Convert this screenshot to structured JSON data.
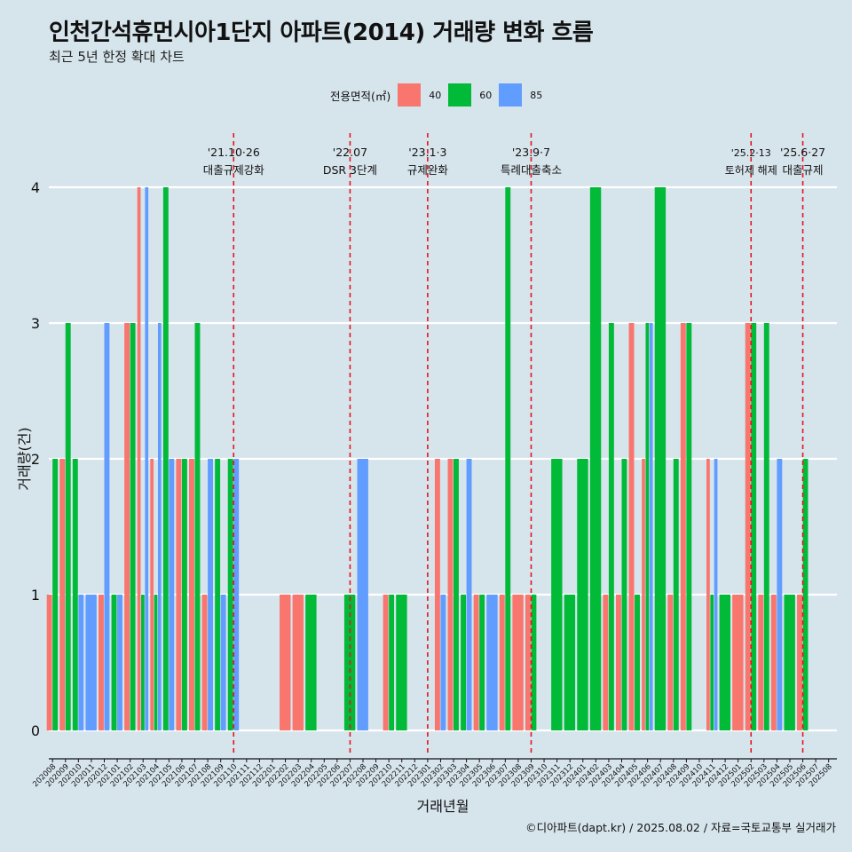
{
  "header": {
    "title": "인천간석휴먼시아1단지 아파트(2014) 거래량 변화 흐름",
    "subtitle": "최근 5년 한정 확대 차트"
  },
  "legend": {
    "title": "전용면적(㎡)",
    "items": [
      {
        "label": "40",
        "color": "#f8766d"
      },
      {
        "label": "60",
        "color": "#00ba38"
      },
      {
        "label": "85",
        "color": "#619cff"
      }
    ]
  },
  "caption": "©디아파트(dapt.kr) / 2025.08.02 / 자료=국토교통부 실거래가",
  "chart_data": {
    "type": "bar",
    "xlabel": "거래년월",
    "ylabel": "거래량(건)",
    "ylim": [
      0,
      4
    ],
    "yticks": [
      0,
      1,
      2,
      3,
      4
    ],
    "grid": true,
    "legend_position": "top",
    "series_colors": {
      "40": "#f8766d",
      "60": "#00ba38",
      "85": "#619cff"
    },
    "categories": [
      "202008",
      "202009",
      "202010",
      "202011",
      "202012",
      "202101",
      "202102",
      "202103",
      "202104",
      "202105",
      "202106",
      "202107",
      "202108",
      "202109",
      "202110",
      "202111",
      "202112",
      "202201",
      "202202",
      "202203",
      "202204",
      "202205",
      "202206",
      "202207",
      "202208",
      "202209",
      "202210",
      "202211",
      "202212",
      "202301",
      "202302",
      "202303",
      "202304",
      "202305",
      "202306",
      "202307",
      "202308",
      "202309",
      "202310",
      "202311",
      "202312",
      "202401",
      "202402",
      "202403",
      "202404",
      "202405",
      "202406",
      "202407",
      "202408",
      "202409",
      "202410",
      "202411",
      "202412",
      "202501",
      "202502",
      "202503",
      "202504",
      "202505",
      "202506",
      "202507",
      "202508"
    ],
    "bars": [
      {
        "month": "202008",
        "area": "40",
        "value": 1
      },
      {
        "month": "202008",
        "area": "60",
        "value": 2
      },
      {
        "month": "202009",
        "area": "40",
        "value": 2
      },
      {
        "month": "202009",
        "area": "60",
        "value": 3
      },
      {
        "month": "202010",
        "area": "60",
        "value": 2
      },
      {
        "month": "202010",
        "area": "85",
        "value": 1
      },
      {
        "month": "202011",
        "area": "85",
        "value": 1
      },
      {
        "month": "202012",
        "area": "40",
        "value": 1
      },
      {
        "month": "202012",
        "area": "85",
        "value": 3
      },
      {
        "month": "202101",
        "area": "60",
        "value": 1
      },
      {
        "month": "202101",
        "area": "85",
        "value": 1
      },
      {
        "month": "202102",
        "area": "40",
        "value": 3
      },
      {
        "month": "202102",
        "area": "60",
        "value": 3
      },
      {
        "month": "202103",
        "area": "40",
        "value": 4
      },
      {
        "month": "202103",
        "area": "60",
        "value": 1
      },
      {
        "month": "202103",
        "area": "85",
        "value": 4
      },
      {
        "month": "202104",
        "area": "40",
        "value": 2
      },
      {
        "month": "202104",
        "area": "60",
        "value": 1
      },
      {
        "month": "202104",
        "area": "85",
        "value": 3
      },
      {
        "month": "202105",
        "area": "60",
        "value": 4
      },
      {
        "month": "202105",
        "area": "85",
        "value": 2
      },
      {
        "month": "202106",
        "area": "40",
        "value": 2
      },
      {
        "month": "202106",
        "area": "60",
        "value": 2
      },
      {
        "month": "202107",
        "area": "40",
        "value": 2
      },
      {
        "month": "202107",
        "area": "60",
        "value": 3
      },
      {
        "month": "202108",
        "area": "40",
        "value": 1
      },
      {
        "month": "202108",
        "area": "85",
        "value": 2
      },
      {
        "month": "202109",
        "area": "60",
        "value": 2
      },
      {
        "month": "202109",
        "area": "85",
        "value": 1
      },
      {
        "month": "202110",
        "area": "60",
        "value": 2
      },
      {
        "month": "202110",
        "area": "85",
        "value": 2
      },
      {
        "month": "202202",
        "area": "40",
        "value": 1
      },
      {
        "month": "202203",
        "area": "40",
        "value": 1
      },
      {
        "month": "202204",
        "area": "60",
        "value": 1
      },
      {
        "month": "202207",
        "area": "60",
        "value": 1
      },
      {
        "month": "202208",
        "area": "85",
        "value": 2
      },
      {
        "month": "202210",
        "area": "40",
        "value": 1
      },
      {
        "month": "202210",
        "area": "60",
        "value": 1
      },
      {
        "month": "202211",
        "area": "60",
        "value": 1
      },
      {
        "month": "202302",
        "area": "40",
        "value": 2
      },
      {
        "month": "202302",
        "area": "85",
        "value": 1
      },
      {
        "month": "202303",
        "area": "40",
        "value": 2
      },
      {
        "month": "202303",
        "area": "60",
        "value": 2
      },
      {
        "month": "202304",
        "area": "60",
        "value": 1
      },
      {
        "month": "202304",
        "area": "85",
        "value": 2
      },
      {
        "month": "202305",
        "area": "40",
        "value": 1
      },
      {
        "month": "202305",
        "area": "60",
        "value": 1
      },
      {
        "month": "202306",
        "area": "85",
        "value": 1
      },
      {
        "month": "202307",
        "area": "40",
        "value": 1
      },
      {
        "month": "202307",
        "area": "60",
        "value": 4
      },
      {
        "month": "202308",
        "area": "40",
        "value": 1
      },
      {
        "month": "202309",
        "area": "40",
        "value": 1
      },
      {
        "month": "202309",
        "area": "60",
        "value": 1
      },
      {
        "month": "202311",
        "area": "60",
        "value": 2
      },
      {
        "month": "202312",
        "area": "60",
        "value": 1
      },
      {
        "month": "202401",
        "area": "60",
        "value": 2
      },
      {
        "month": "202402",
        "area": "60",
        "value": 4
      },
      {
        "month": "202403",
        "area": "40",
        "value": 1
      },
      {
        "month": "202403",
        "area": "60",
        "value": 3
      },
      {
        "month": "202404",
        "area": "40",
        "value": 1
      },
      {
        "month": "202404",
        "area": "60",
        "value": 2
      },
      {
        "month": "202405",
        "area": "40",
        "value": 3
      },
      {
        "month": "202405",
        "area": "60",
        "value": 1
      },
      {
        "month": "202406",
        "area": "40",
        "value": 2
      },
      {
        "month": "202406",
        "area": "60",
        "value": 3
      },
      {
        "month": "202406",
        "area": "85",
        "value": 3
      },
      {
        "month": "202407",
        "area": "60",
        "value": 4
      },
      {
        "month": "202408",
        "area": "40",
        "value": 1
      },
      {
        "month": "202408",
        "area": "60",
        "value": 2
      },
      {
        "month": "202409",
        "area": "40",
        "value": 3
      },
      {
        "month": "202409",
        "area": "60",
        "value": 3
      },
      {
        "month": "202411",
        "area": "40",
        "value": 2
      },
      {
        "month": "202411",
        "area": "60",
        "value": 1
      },
      {
        "month": "202411",
        "area": "85",
        "value": 2
      },
      {
        "month": "202412",
        "area": "60",
        "value": 1
      },
      {
        "month": "202501",
        "area": "40",
        "value": 1
      },
      {
        "month": "202502",
        "area": "40",
        "value": 3
      },
      {
        "month": "202502",
        "area": "60",
        "value": 3
      },
      {
        "month": "202503",
        "area": "40",
        "value": 1
      },
      {
        "month": "202503",
        "area": "60",
        "value": 3
      },
      {
        "month": "202504",
        "area": "40",
        "value": 1
      },
      {
        "month": "202504",
        "area": "85",
        "value": 2
      },
      {
        "month": "202505",
        "area": "60",
        "value": 1
      },
      {
        "month": "202506",
        "area": "40",
        "value": 1
      },
      {
        "month": "202506",
        "area": "60",
        "value": 2
      }
    ],
    "annotations": [
      {
        "month": "202110",
        "date": "'21.10·26",
        "text": "대출규제강화"
      },
      {
        "month": "202207",
        "date": "'22.07",
        "text": "DSR 3단계"
      },
      {
        "month": "202301",
        "date": "'23.1·3",
        "text": "규제완화"
      },
      {
        "month": "202309",
        "date": "'23.9·7",
        "text": "특례대출축소"
      },
      {
        "month": "202502",
        "date": "'25.2·13",
        "text": "토허제 해제"
      },
      {
        "month": "202506",
        "date": "'25.6·27",
        "text": "대출규제"
      }
    ],
    "annotation_color": "#e8141c"
  }
}
